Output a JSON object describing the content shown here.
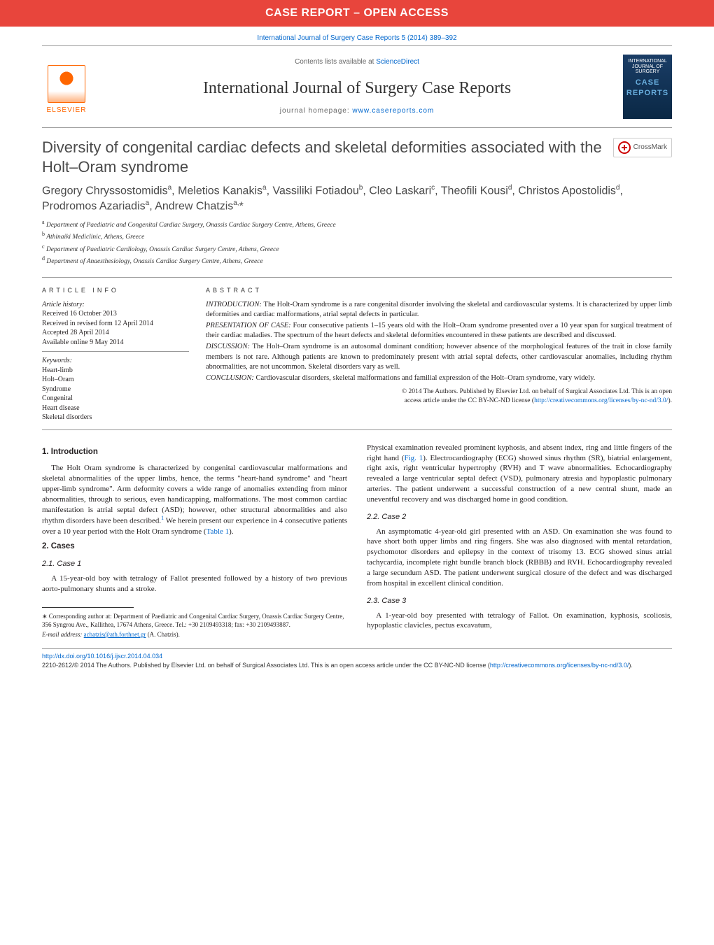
{
  "banner": {
    "text": "CASE REPORT – OPEN ACCESS"
  },
  "citation": "International Journal of Surgery Case Reports 5 (2014) 389–392",
  "header": {
    "contents_prefix": "Contents lists available at ",
    "contents_link": "ScienceDirect",
    "journal_name": "International Journal of Surgery Case Reports",
    "homepage_prefix": "journal homepage: ",
    "homepage_url": "www.casereports.com",
    "elsevier_label": "ELSEVIER",
    "cover_title": "INTERNATIONAL JOURNAL OF SURGERY",
    "cover_sub": "CASE REPORTS"
  },
  "crossmark": {
    "label": "CrossMark"
  },
  "article": {
    "title": "Diversity of congenital cardiac defects and skeletal deformities associated with the Holt–Oram syndrome",
    "authors_html": "Gregory Chryssostomidisᵃ, Meletios Kanakisᵃ, Vassiliki Fotiadouᵇ, Cleo Laskariᶜ, Theofili Kousiᵈ, Christos Apostolidisᵈ, Prodromos Azariadisᵃ, Andrew Chatzisᵃ,*",
    "affiliations": {
      "a": "Department of Paediatric and Congenital Cardiac Surgery, Onassis Cardiac Surgery Centre, Athens, Greece",
      "b": "Athinaiki Mediclinic, Athens, Greece",
      "c": "Department of Paediatric Cardiology, Onassis Cardiac Surgery Centre, Athens, Greece",
      "d": "Department of Anaesthesiology, Onassis Cardiac Surgery Centre, Athens, Greece"
    }
  },
  "info": {
    "head": "article info",
    "history_label": "Article history:",
    "history": [
      "Received 16 October 2013",
      "Received in revised form 12 April 2014",
      "Accepted 28 April 2014",
      "Available online 9 May 2014"
    ],
    "keywords_label": "Keywords:",
    "keywords": [
      "Heart-limb",
      "Holt–Oram",
      "Syndrome",
      "Congenital",
      "Heart disease",
      "Skeletal disorders"
    ]
  },
  "abstract": {
    "head": "abstract",
    "intro_label": "INTRODUCTION:",
    "intro": " The Holt-Oram syndrome is a rare congenital disorder involving the skeletal and cardiovascular systems. It is characterized by upper limb deformities and cardiac malformations, atrial septal defects in particular.",
    "case_label": "PRESENTATION OF CASE:",
    "case": " Four consecutive patients 1–15 years old with the Holt–Oram syndrome presented over a 10 year span for surgical treatment of their cardiac maladies. The spectrum of the heart defects and skeletal deformities encountered in these patients are described and discussed.",
    "disc_label": "DISCUSSION:",
    "disc": " The Holt–Oram syndrome is an autosomal dominant condition; however absence of the morphological features of the trait in close family members is not rare. Although patients are known to predominately present with atrial septal defects, other cardiovascular anomalies, including rhythm abnormalities, are not uncommon. Skeletal disorders vary as well.",
    "concl_label": "CONCLUSION:",
    "concl": " Cardiovascular disorders, skeletal malformations and familial expression of the Holt–Oram syndrome, vary widely.",
    "copyright1": "© 2014 The Authors. Published by Elsevier Ltd. on behalf of Surgical Associates Ltd. This is an open",
    "copyright2": "access article under the CC BY-NC-ND license (",
    "license_url": "http://creativecommons.org/licenses/by-nc-nd/3.0/",
    "copyright3": ")."
  },
  "body": {
    "s1_head": "1.  Introduction",
    "s1_p1a": "The Holt Oram syndrome is characterized by congenital cardiovascular malformations and skeletal abnormalities of the upper limbs, hence, the terms \"heart-hand syndrome\" and \"heart upper-limb syndrome\". Arm deformity covers a wide range of anomalies extending from minor abnormalities, through to serious, even handicapping, malformations. The most common cardiac manifestation is atrial septal defect (ASD); however, other structural abnormalities and also rhythm disorders have been described.",
    "s1_ref1": "1",
    "s1_p1b": " We herein present our experience in 4 consecutive patients over a 10 year period with the Holt Oram syndrome (",
    "s1_tab": "Table 1",
    "s1_p1c": ").",
    "s2_head": "2.  Cases",
    "c1_head": "2.1.  Case 1",
    "c1_p1": "A 15-year-old boy with tetralogy of Fallot presented followed by a history of two previous aorto-pulmonary shunts and a stroke.",
    "col2_p1a": "Physical examination revealed prominent kyphosis, and absent index, ring and little fingers of the right hand (",
    "col2_fig": "Fig. 1",
    "col2_p1b": "). Electrocardiography (ECG) showed sinus rhythm (SR), biatrial enlargement, right axis, right ventricular hypertrophy (RVH) and T wave abnormalities. Echocardiography revealed a large ventricular septal defect (VSD), pulmonary atresia and hypoplastic pulmonary arteries. The patient underwent a successful construction of a new central shunt, made an uneventful recovery and was discharged home in good condition.",
    "c2_head": "2.2.  Case 2",
    "c2_p1": "An asymptomatic 4-year-old girl presented with an ASD. On examination she was found to have short both upper limbs and ring fingers. She was also diagnosed with mental retardation, psychomotor disorders and epilepsy in the context of trisomy 13. ECG showed sinus atrial tachycardia, incomplete right bundle branch block (RBBB) and RVH. Echocardiography revealed a large secundum ASD. The patient underwent surgical closure of the defect and was discharged from hospital in excellent clinical condition.",
    "c3_head": "2.3.  Case 3",
    "c3_p1": "A 1-year-old boy presented with tetralogy of Fallot. On examination, kyphosis, scoliosis, hypoplastic clavicles, pectus excavatum,"
  },
  "footnotes": {
    "corr": "∗ Corresponding author at: Department of Paediatric and Congenital Cardiac Surgery, Onassis Cardiac Surgery Centre, 356 Syngrou Ave., Kallithea, 17674 Athens, Greece. Tel.: +30 2109493318; fax: +30 2109493887.",
    "email_label": "E-mail address: ",
    "email": "achatzis@ath.forthnet.gr",
    "email_suffix": " (A. Chatzis)."
  },
  "bottom": {
    "doi": "http://dx.doi.org/10.1016/j.ijscr.2014.04.034",
    "issn_line": "2210-2612/© 2014 The Authors. Published by Elsevier Ltd. on behalf of Surgical Associates Ltd. This is an open access article under the CC BY-NC-ND license (",
    "license_url": "http://creativecommons.org/licenses/by-nc-nd/3.0/",
    "issn_end": ")."
  },
  "colors": {
    "banner_bg": "#e8453c",
    "link": "#0066cc",
    "elsevier_orange": "#ff6600",
    "text": "#231f20",
    "rule": "#999999"
  },
  "typography": {
    "body_font": "Georgia, serif",
    "sans_font": "Arial, sans-serif",
    "title_fontsize": 22,
    "journal_fontsize": 24,
    "body_fontsize": 11,
    "abstract_fontsize": 10.5
  }
}
